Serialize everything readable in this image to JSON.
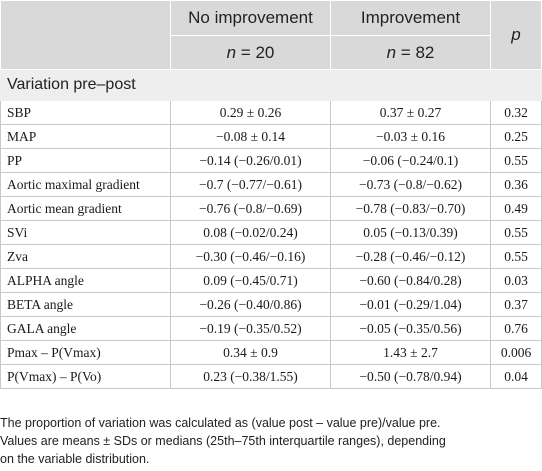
{
  "table": {
    "headers": {
      "col1": "",
      "col2": "No improvement",
      "col3": "Improvement",
      "col4": "p"
    },
    "subheaders": {
      "col2_n": "n",
      "col2_eq": " = 20",
      "col3_n": "n",
      "col3_eq": " = 82"
    },
    "section_title": "Variation pre–post",
    "rows": [
      {
        "label": "SBP",
        "no_improvement": "0.29 ± 0.26",
        "improvement": "0.37 ± 0.27",
        "p": "0.32"
      },
      {
        "label": "MAP",
        "no_improvement": "−0.08 ± 0.14",
        "improvement": "−0.03 ± 0.16",
        "p": "0.25"
      },
      {
        "label": "PP",
        "no_improvement": "−0.14 (−0.26/0.01)",
        "improvement": "−0.06 (−0.24/0.1)",
        "p": "0.55"
      },
      {
        "label": "Aortic maximal gradient",
        "no_improvement": "−0.7 (−0.77/−0.61)",
        "improvement": "−0.73 (−0.8/−0.62)",
        "p": "0.36"
      },
      {
        "label": "Aortic mean gradient",
        "no_improvement": "−0.76 (−0.8/−0.69)",
        "improvement": "−0.78 (−0.83/−0.70)",
        "p": "0.49"
      },
      {
        "label": "SVi",
        "no_improvement": "0.08 (−0.02/0.24)",
        "improvement": "0.05 (−0.13/0.39)",
        "p": "0.55"
      },
      {
        "label": "Zva",
        "no_improvement": "−0.30 (−0.46/−0.16)",
        "improvement": "−0.28 (−0.46/−0.12)",
        "p": "0.55"
      },
      {
        "label": "ALPHA angle",
        "no_improvement": "0.09 (−0.45/0.71)",
        "improvement": "−0.60 (−0.84/0.28)",
        "p": "0.03"
      },
      {
        "label": "BETA angle",
        "no_improvement": "−0.26 (−0.40/0.86)",
        "improvement": "−0.01 (−0.29/1.04)",
        "p": "0.37"
      },
      {
        "label": "GALA angle",
        "no_improvement": "−0.19 (−0.35/0.52)",
        "improvement": "−0.05 (−0.35/0.56)",
        "p": "0.76"
      },
      {
        "label": "Pmax – P(Vmax)",
        "no_improvement": "0.34 ± 0.9",
        "improvement": "1.43 ± 2.7",
        "p": "0.006"
      },
      {
        "label": "P(Vmax) – P(Vo)",
        "no_improvement": "0.23 (−0.38/1.55)",
        "improvement": "−0.50 (−0.78/0.94)",
        "p": "0.04"
      }
    ]
  },
  "footnote": {
    "line1": "The proportion of variation was calculated as (value post – value pre)/value pre.",
    "line2": "Values are means ± SDs or medians (25th–75th interquartile ranges), depending",
    "line3": "on the variable distribution."
  }
}
